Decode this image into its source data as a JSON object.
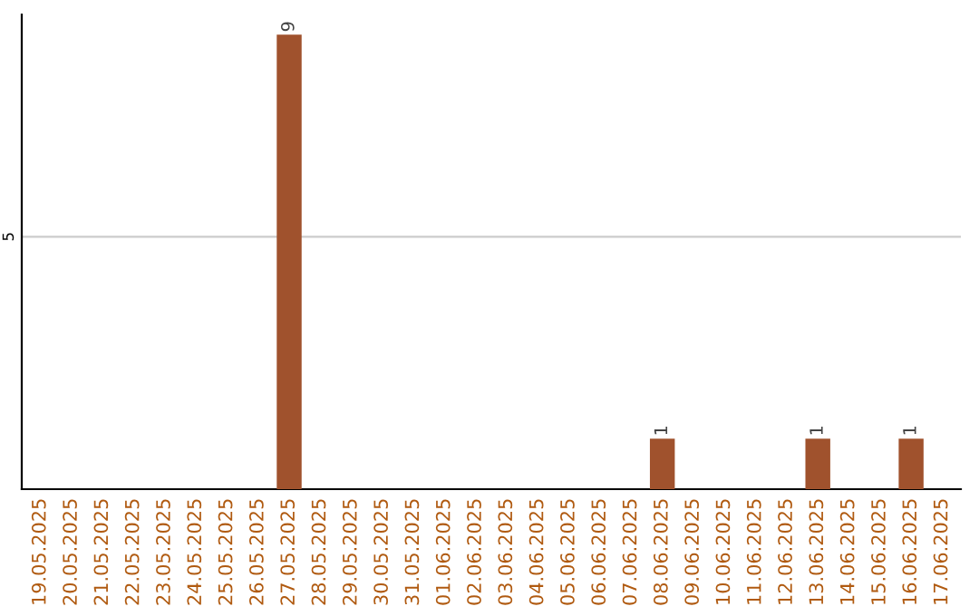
{
  "chart_data": {
    "type": "bar",
    "categories": [
      "19.05.2025",
      "20.05.2025",
      "21.05.2025",
      "22.05.2025",
      "23.05.2025",
      "24.05.2025",
      "25.05.2025",
      "26.05.2025",
      "27.05.2025",
      "28.05.2025",
      "29.05.2025",
      "30.05.2025",
      "31.05.2025",
      "01.06.2025",
      "02.06.2025",
      "03.06.2025",
      "04.06.2025",
      "05.06.2025",
      "06.06.2025",
      "07.06.2025",
      "08.06.2025",
      "09.06.2025",
      "10.06.2025",
      "11.06.2025",
      "12.06.2025",
      "13.06.2025",
      "14.06.2025",
      "15.06.2025",
      "16.06.2025",
      "17.06.2025"
    ],
    "values": [
      0,
      0,
      0,
      0,
      0,
      0,
      0,
      0,
      9,
      0,
      0,
      0,
      0,
      0,
      0,
      0,
      0,
      0,
      0,
      0,
      1,
      0,
      0,
      0,
      0,
      1,
      0,
      0,
      1,
      0
    ],
    "value_labels": [
      null,
      null,
      null,
      null,
      null,
      null,
      null,
      null,
      "9",
      null,
      null,
      null,
      null,
      null,
      null,
      null,
      null,
      null,
      null,
      null,
      "1",
      null,
      null,
      null,
      null,
      "1",
      null,
      null,
      "1",
      null
    ],
    "color": "#a0522d",
    "ylim": [
      0,
      9.4
    ],
    "yticks": [
      5
    ],
    "grid": "y"
  }
}
